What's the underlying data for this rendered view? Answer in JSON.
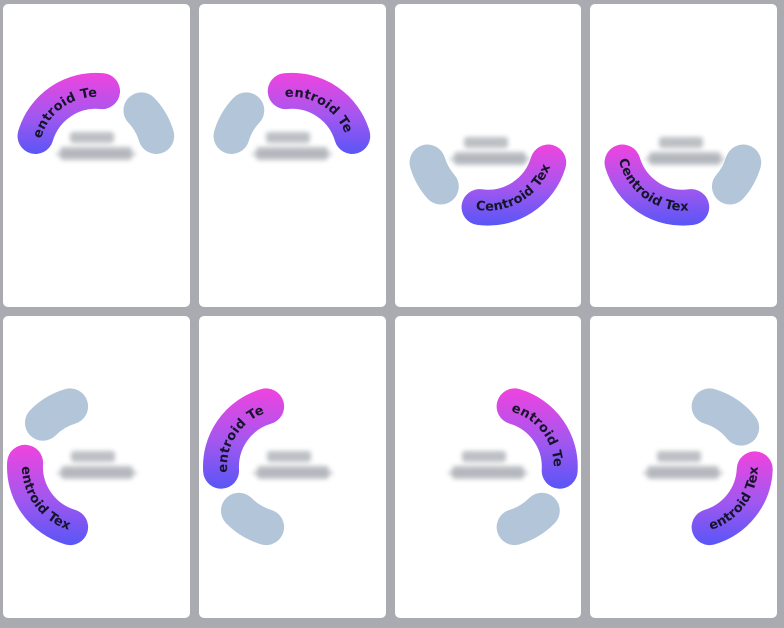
{
  "app": {
    "frame_color": "#a9abb0",
    "tile_color": "#ffffff",
    "center_text": "illegible blurred gray text"
  },
  "palette": {
    "value_gradient_top": "#f043de",
    "value_gradient_mid": "#a457ef",
    "value_gradient_bottom": "#5956f6",
    "rest_color": "#b3c6d9",
    "label_color": "#14152b",
    "smudge_color": "#a6aab0"
  },
  "chart_data": [
    {
      "type": "gauge",
      "orientation": "top-half",
      "center_text": "illegible-blurred",
      "segments": [
        {
          "kind": "value",
          "label": "Centroid Text",
          "start_deg": 180,
          "end_deg": 68,
          "reverse_text": false
        },
        {
          "kind": "rest",
          "start_deg": 60,
          "end_deg": 0
        }
      ]
    },
    {
      "type": "gauge",
      "orientation": "top-half",
      "center_text": "illegible-blurred",
      "segments": [
        {
          "kind": "rest",
          "start_deg": 180,
          "end_deg": 120
        },
        {
          "kind": "value",
          "label": "Centroid Text",
          "start_deg": 112,
          "end_deg": 0,
          "reverse_text": false
        }
      ]
    },
    {
      "type": "gauge",
      "orientation": "bottom-half",
      "center_text": "illegible-blurred",
      "segments": [
        {
          "kind": "rest",
          "start_deg": 180,
          "end_deg": 238
        },
        {
          "kind": "value",
          "label": "Centroid Text",
          "start_deg": 246,
          "end_deg": 360,
          "reverse_text": false
        }
      ]
    },
    {
      "type": "gauge",
      "orientation": "bottom-half",
      "center_text": "illegible-blurred",
      "segments": [
        {
          "kind": "value",
          "label": "Centroid Text",
          "start_deg": 180,
          "end_deg": 294,
          "reverse_text": false
        },
        {
          "kind": "rest",
          "start_deg": 302,
          "end_deg": 360
        }
      ]
    },
    {
      "type": "gauge",
      "orientation": "left-half",
      "center_text": "illegible-blurred",
      "segments": [
        {
          "kind": "rest",
          "start_deg": 90,
          "end_deg": 152
        },
        {
          "kind": "value",
          "label": "Centroid Text",
          "start_deg": 160,
          "end_deg": 270,
          "reverse_text": false
        }
      ]
    },
    {
      "type": "gauge",
      "orientation": "left-half",
      "center_text": "illegible-blurred",
      "segments": [
        {
          "kind": "value",
          "label": "Centroid Text",
          "start_deg": 90,
          "end_deg": 200,
          "reverse_text": true
        },
        {
          "kind": "rest",
          "start_deg": 208,
          "end_deg": 270
        }
      ]
    },
    {
      "type": "gauge",
      "orientation": "right-half",
      "center_text": "illegible-blurred",
      "segments": [
        {
          "kind": "value",
          "label": "Centroid Text",
          "start_deg": 90,
          "end_deg": -20,
          "reverse_text": false
        },
        {
          "kind": "rest",
          "start_deg": -28,
          "end_deg": -90
        }
      ]
    },
    {
      "type": "gauge",
      "orientation": "right-half",
      "center_text": "illegible-blurred",
      "segments": [
        {
          "kind": "rest",
          "start_deg": 90,
          "end_deg": 22
        },
        {
          "kind": "value",
          "label": "Centroid Text",
          "start_deg": 14,
          "end_deg": -90,
          "reverse_text": true
        }
      ]
    }
  ]
}
